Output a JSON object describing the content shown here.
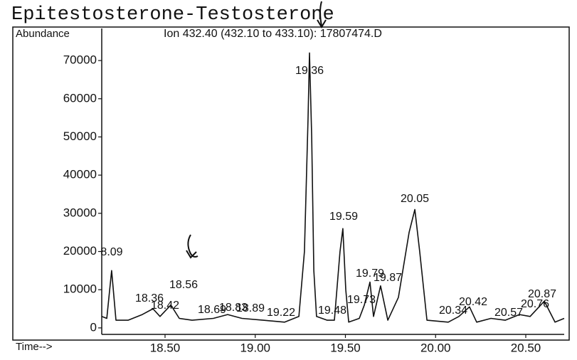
{
  "chart_data": {
    "type": "line",
    "title": "Epitestosterone-Testosterone",
    "y_label": "Abundance",
    "subtitle": "Ion 432.40 (432.10 to 433.10): 17807474.D",
    "x_label": "Time-->",
    "color": "#111111",
    "x": [
      18.149,
      18.177,
      18.204,
      18.228,
      18.295,
      18.374,
      18.433,
      18.472,
      18.532,
      18.579,
      18.65,
      18.768,
      18.847,
      18.926,
      19.044,
      19.163,
      19.242,
      19.273,
      19.293,
      19.301,
      19.313,
      19.325,
      19.34,
      19.399,
      19.439,
      19.47,
      19.486,
      19.502,
      19.518,
      19.577,
      19.605,
      19.636,
      19.656,
      19.695,
      19.735,
      19.794,
      19.853,
      19.885,
      19.912,
      19.952,
      20.07,
      20.129,
      20.188,
      20.228,
      20.307,
      20.386,
      20.465,
      20.524,
      20.603,
      20.662,
      20.713
    ],
    "values": [
      3000,
      2500,
      15000,
      2000,
      2000,
      3500,
      5000,
      3000,
      6000,
      2500,
      2000,
      2500,
      3500,
      2500,
      2000,
      1500,
      3000,
      20000,
      55000,
      72000,
      50000,
      15000,
      3000,
      2000,
      2000,
      20000,
      26000,
      10000,
      1500,
      2500,
      6000,
      12000,
      3000,
      11000,
      2000,
      8000,
      25000,
      31000,
      20000,
      2000,
      1500,
      3000,
      5500,
      1500,
      2500,
      2000,
      3500,
      3000,
      7000,
      1500,
      2500
    ],
    "annotations": [
      "8.09",
      "18.36",
      "18.42",
      "18.56",
      "18.69",
      "18.83",
      "18.89",
      "19.22",
      "19.36",
      "19.48",
      "19.59",
      "19.73",
      "19.79",
      "19.87",
      "20.05",
      "20.34",
      "20.42",
      "20.57",
      "20.76",
      "20.87"
    ],
    "xlim": [
      18.149,
      20.713
    ],
    "ylim": [
      -1700,
      78400
    ],
    "xticks": [
      {
        "value": 18.5,
        "label": "18.50"
      },
      {
        "value": 19,
        "label": "19.00"
      },
      {
        "value": 19.5,
        "label": "19.50"
      },
      {
        "value": 20,
        "label": "20.00"
      },
      {
        "value": 20.5,
        "label": "20.50"
      }
    ],
    "yticks": [
      0,
      10000,
      20000,
      30000,
      40000,
      50000,
      60000,
      70000
    ]
  }
}
